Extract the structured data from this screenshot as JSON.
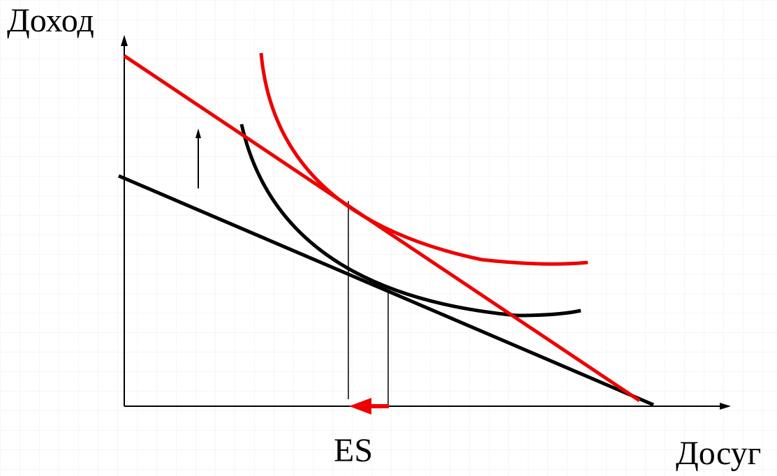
{
  "labels": {
    "y_axis": "Доход",
    "x_axis": "Досуг",
    "effect": "ES"
  },
  "colors": {
    "background": "#ffffff",
    "grid": "#ececec",
    "initial": "#000000",
    "new": "#ee0000"
  },
  "icons": {
    "up_arrow": "up-arrow-icon",
    "effect_arrow": "left-arrow-icon"
  }
}
